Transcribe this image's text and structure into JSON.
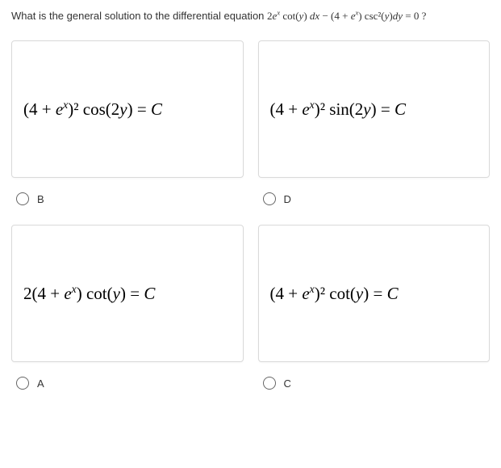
{
  "question": {
    "prefix": "What is the general solution to the differential equation  ",
    "equation_html": "2<span class='ital'>e</span><sup>x</sup> cot(<span class='ital'>y</span>) <span class='ital'>dx</span> − (4 + <span class='ital'>e</span><sup>x</sup>) csc²(<span class='ital'>y</span>)<span class='ital'>dy</span> = 0 ?"
  },
  "options": [
    {
      "key": "B",
      "formula_html": "(4 + <span class='ital'>e</span><sup>x</sup>)² cos(2<span class='ital'>y</span>) = <span class='ital'>C</span>"
    },
    {
      "key": "D",
      "formula_html": "(4 + <span class='ital'>e</span><sup>x</sup>)² sin(2<span class='ital'>y</span>) = <span class='ital'>C</span>"
    },
    {
      "key": "A",
      "formula_html": "2(4 + <span class='ital'>e</span><sup>x</sup>) cot(<span class='ital'>y</span>) = <span class='ital'>C</span>"
    },
    {
      "key": "C",
      "formula_html": "(4 + <span class='ital'>e</span><sup>x</sup>)² cot(<span class='ital'>y</span>) = <span class='ital'>C</span>"
    }
  ],
  "style": {
    "card_border": "#d9d9d9",
    "text_color": "#333333",
    "formula_color": "#000000",
    "radio_border": "#666666",
    "background": "#ffffff",
    "question_fontsize": 13,
    "formula_fontsize": 21,
    "label_fontsize": 13
  }
}
